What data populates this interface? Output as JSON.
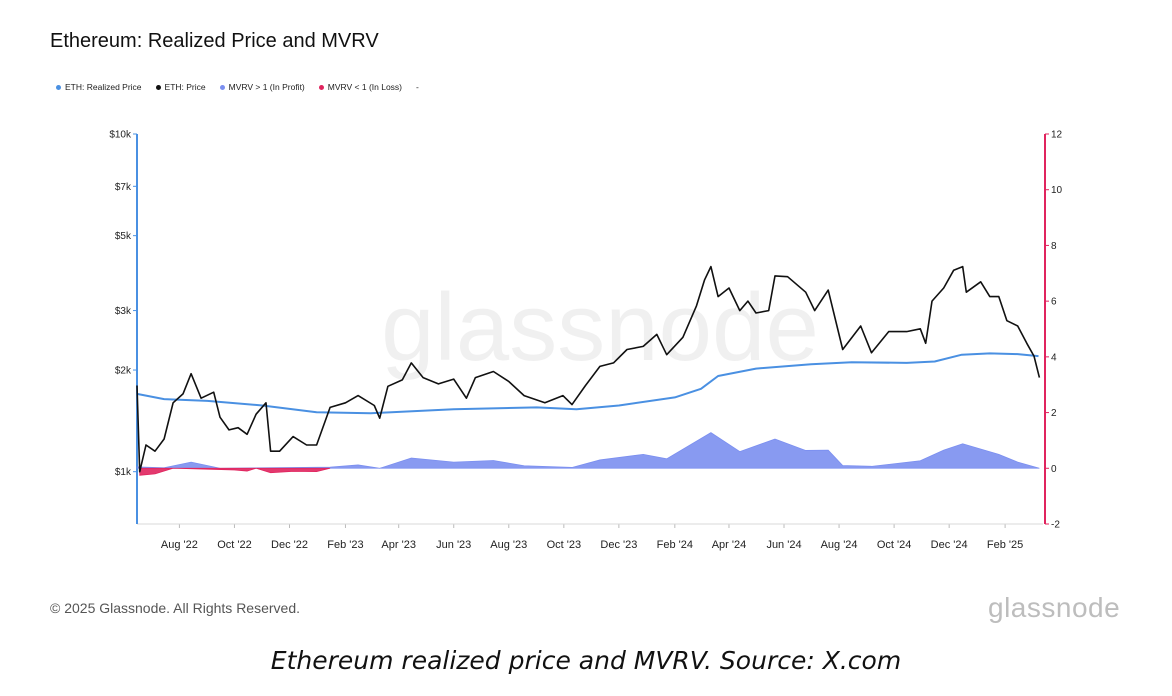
{
  "chart_data": {
    "type": "line",
    "title": "Ethereum: Realized Price and MVRV",
    "legend": [
      {
        "label": "ETH: Realized Price",
        "color": "#4a90e2"
      },
      {
        "label": "ETH: Price",
        "color": "#111111"
      },
      {
        "label": "MVRV > 1 (In Profit)",
        "color": "#7b8ff0"
      },
      {
        "label": "MVRV < 1 (In Loss)",
        "color": "#e0245e"
      },
      {
        "label": "-",
        "color": ""
      }
    ],
    "y_left": {
      "scale": "log",
      "ticks": [
        "$1k",
        "$2k",
        "$3k",
        "$5k",
        "$7k",
        "$10k"
      ],
      "tick_values": [
        1000,
        2000,
        3000,
        5000,
        7000,
        10000
      ],
      "range": [
        700,
        10000
      ]
    },
    "y_right": {
      "ticks": [
        "-2",
        "0",
        "2",
        "4",
        "6",
        "8",
        "10",
        "12"
      ],
      "tick_values": [
        -2,
        0,
        2,
        4,
        6,
        8,
        10,
        12
      ],
      "range": [
        -2,
        12
      ]
    },
    "x_ticks": [
      "Aug '22",
      "Oct '22",
      "Dec '22",
      "Feb '23",
      "Apr '23",
      "Jun '23",
      "Aug '23",
      "Oct '23",
      "Dec '23",
      "Feb '24",
      "Apr '24",
      "Jun '24",
      "Aug '24",
      "Oct '24",
      "Dec '24",
      "Feb '25"
    ],
    "x_range": [
      "2022-06-15",
      "2025-03-15"
    ],
    "watermark": "glassnode",
    "series": [
      {
        "name": "ETH: Price",
        "axis": "left",
        "points": [
          [
            "2022-06-15",
            1800
          ],
          [
            "2022-06-18",
            1000
          ],
          [
            "2022-06-25",
            1200
          ],
          [
            "2022-07-05",
            1150
          ],
          [
            "2022-07-15",
            1250
          ],
          [
            "2022-07-25",
            1600
          ],
          [
            "2022-08-05",
            1700
          ],
          [
            "2022-08-14",
            1950
          ],
          [
            "2022-08-25",
            1650
          ],
          [
            "2022-09-08",
            1720
          ],
          [
            "2022-09-15",
            1450
          ],
          [
            "2022-09-25",
            1330
          ],
          [
            "2022-10-05",
            1350
          ],
          [
            "2022-10-15",
            1290
          ],
          [
            "2022-10-25",
            1480
          ],
          [
            "2022-11-05",
            1600
          ],
          [
            "2022-11-10",
            1150
          ],
          [
            "2022-11-20",
            1150
          ],
          [
            "2022-12-05",
            1270
          ],
          [
            "2022-12-20",
            1200
          ],
          [
            "2022-12-31",
            1200
          ],
          [
            "2023-01-15",
            1550
          ],
          [
            "2023-02-01",
            1600
          ],
          [
            "2023-02-15",
            1680
          ],
          [
            "2023-03-05",
            1570
          ],
          [
            "2023-03-11",
            1440
          ],
          [
            "2023-03-20",
            1790
          ],
          [
            "2023-04-05",
            1870
          ],
          [
            "2023-04-15",
            2100
          ],
          [
            "2023-04-28",
            1900
          ],
          [
            "2023-05-15",
            1820
          ],
          [
            "2023-06-01",
            1880
          ],
          [
            "2023-06-15",
            1650
          ],
          [
            "2023-06-25",
            1900
          ],
          [
            "2023-07-15",
            1980
          ],
          [
            "2023-08-01",
            1850
          ],
          [
            "2023-08-18",
            1680
          ],
          [
            "2023-09-10",
            1600
          ],
          [
            "2023-09-30",
            1680
          ],
          [
            "2023-10-10",
            1580
          ],
          [
            "2023-10-25",
            1800
          ],
          [
            "2023-11-10",
            2050
          ],
          [
            "2023-11-25",
            2100
          ],
          [
            "2023-12-10",
            2300
          ],
          [
            "2023-12-28",
            2350
          ],
          [
            "2024-01-12",
            2550
          ],
          [
            "2024-01-23",
            2220
          ],
          [
            "2024-02-10",
            2500
          ],
          [
            "2024-02-25",
            3100
          ],
          [
            "2024-03-05",
            3700
          ],
          [
            "2024-03-12",
            4050
          ],
          [
            "2024-03-20",
            3300
          ],
          [
            "2024-04-01",
            3500
          ],
          [
            "2024-04-13",
            3000
          ],
          [
            "2024-04-22",
            3200
          ],
          [
            "2024-05-01",
            2950
          ],
          [
            "2024-05-15",
            3000
          ],
          [
            "2024-05-22",
            3800
          ],
          [
            "2024-06-05",
            3780
          ],
          [
            "2024-06-25",
            3400
          ],
          [
            "2024-07-05",
            3000
          ],
          [
            "2024-07-20",
            3450
          ],
          [
            "2024-08-05",
            2300
          ],
          [
            "2024-08-25",
            2700
          ],
          [
            "2024-09-06",
            2250
          ],
          [
            "2024-09-25",
            2600
          ],
          [
            "2024-10-15",
            2600
          ],
          [
            "2024-10-30",
            2650
          ],
          [
            "2024-11-05",
            2400
          ],
          [
            "2024-11-12",
            3200
          ],
          [
            "2024-11-25",
            3500
          ],
          [
            "2024-12-06",
            3950
          ],
          [
            "2024-12-16",
            4050
          ],
          [
            "2024-12-20",
            3400
          ],
          [
            "2025-01-05",
            3650
          ],
          [
            "2025-01-15",
            3300
          ],
          [
            "2025-01-25",
            3300
          ],
          [
            "2025-02-03",
            2800
          ],
          [
            "2025-02-15",
            2700
          ],
          [
            "2025-02-25",
            2400
          ],
          [
            "2025-03-05",
            2200
          ],
          [
            "2025-03-11",
            1900
          ]
        ]
      },
      {
        "name": "ETH: Realized Price",
        "axis": "left",
        "points": [
          [
            "2022-06-15",
            1700
          ],
          [
            "2022-07-15",
            1640
          ],
          [
            "2022-09-01",
            1620
          ],
          [
            "2022-11-01",
            1570
          ],
          [
            "2022-12-31",
            1500
          ],
          [
            "2023-03-01",
            1490
          ],
          [
            "2023-06-01",
            1530
          ],
          [
            "2023-09-01",
            1550
          ],
          [
            "2023-10-15",
            1530
          ],
          [
            "2023-12-01",
            1570
          ],
          [
            "2024-02-01",
            1660
          ],
          [
            "2024-03-01",
            1760
          ],
          [
            "2024-03-20",
            1920
          ],
          [
            "2024-05-01",
            2020
          ],
          [
            "2024-07-01",
            2080
          ],
          [
            "2024-08-15",
            2110
          ],
          [
            "2024-10-15",
            2100
          ],
          [
            "2024-11-15",
            2120
          ],
          [
            "2024-12-15",
            2220
          ],
          [
            "2025-01-15",
            2240
          ],
          [
            "2025-02-15",
            2230
          ],
          [
            "2025-03-10",
            2200
          ]
        ]
      },
      {
        "name": "MVRV > 1 (In Profit)",
        "axis": "right",
        "points": [
          [
            "2022-06-15",
            0.05
          ],
          [
            "2022-07-15",
            0.02
          ],
          [
            "2022-08-14",
            0.22
          ],
          [
            "2022-09-15",
            0.0
          ],
          [
            "2022-11-05",
            0.02
          ],
          [
            "2023-01-15",
            0.04
          ],
          [
            "2023-02-15",
            0.12
          ],
          [
            "2023-03-11",
            0.0
          ],
          [
            "2023-04-15",
            0.37
          ],
          [
            "2023-06-01",
            0.22
          ],
          [
            "2023-07-15",
            0.28
          ],
          [
            "2023-08-18",
            0.09
          ],
          [
            "2023-10-10",
            0.03
          ],
          [
            "2023-11-10",
            0.3
          ],
          [
            "2023-12-28",
            0.5
          ],
          [
            "2024-01-23",
            0.34
          ],
          [
            "2024-03-12",
            1.28
          ],
          [
            "2024-04-13",
            0.6
          ],
          [
            "2024-05-22",
            1.05
          ],
          [
            "2024-06-25",
            0.64
          ],
          [
            "2024-07-20",
            0.65
          ],
          [
            "2024-08-05",
            0.1
          ],
          [
            "2024-09-06",
            0.07
          ],
          [
            "2024-10-30",
            0.27
          ],
          [
            "2024-11-25",
            0.65
          ],
          [
            "2024-12-16",
            0.88
          ],
          [
            "2025-01-25",
            0.5
          ],
          [
            "2025-02-15",
            0.22
          ],
          [
            "2025-03-11",
            0.0
          ]
        ]
      },
      {
        "name": "MVRV < 1 (In Loss)",
        "axis": "right",
        "points": [
          [
            "2022-06-18",
            -0.25
          ],
          [
            "2022-07-05",
            -0.2
          ],
          [
            "2022-07-25",
            0.0
          ],
          [
            "2022-10-01",
            -0.06
          ],
          [
            "2022-10-15",
            -0.1
          ],
          [
            "2022-10-25",
            0.0
          ],
          [
            "2022-11-10",
            -0.16
          ],
          [
            "2022-12-05",
            -0.11
          ],
          [
            "2022-12-31",
            -0.12
          ],
          [
            "2023-01-15",
            0.0
          ]
        ]
      }
    ]
  },
  "copyright": "© 2025 Glassnode. All Rights Reserved.",
  "logo_text": "glassnode",
  "caption": "Ethereum realized price and MVRV. Source: X.com"
}
